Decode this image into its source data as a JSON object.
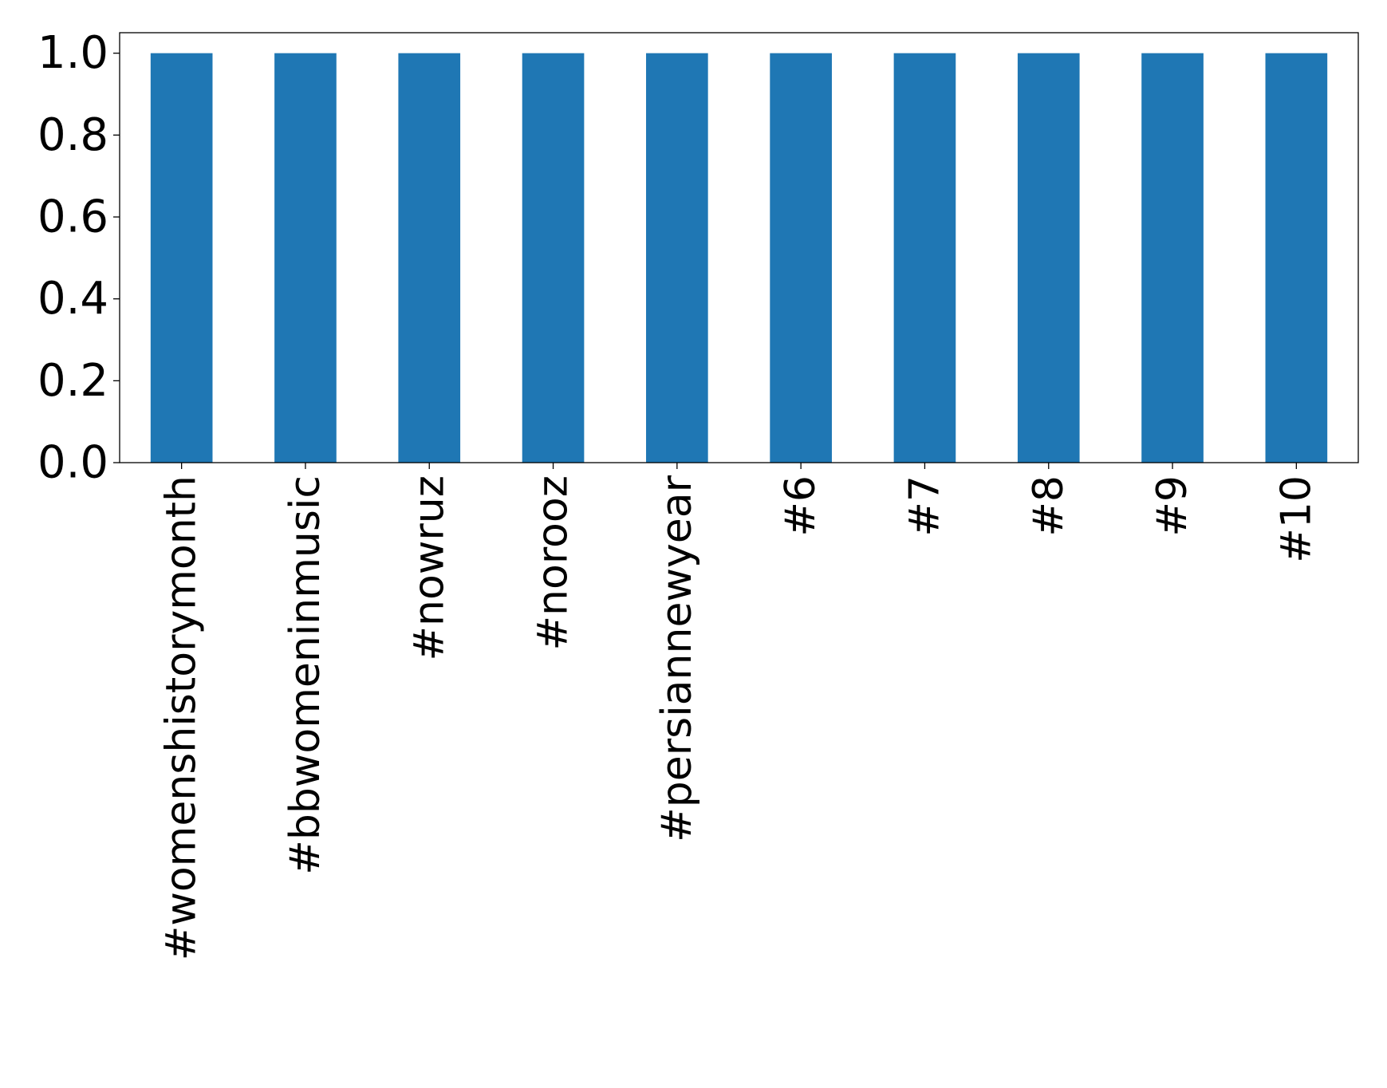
{
  "chart_data": {
    "type": "bar",
    "title": "",
    "xlabel": "",
    "ylabel": "",
    "categories": [
      "#womenshistorymonth",
      "#bbwomeninmusic",
      "#nowruz",
      "#norooz",
      "#persiannewyear",
      "#6",
      "#7",
      "#8",
      "#9",
      "#10"
    ],
    "values": [
      1.0,
      1.0,
      1.0,
      1.0,
      1.0,
      1.0,
      1.0,
      1.0,
      1.0,
      1.0
    ],
    "ylim": [
      0,
      1.05
    ],
    "yticks": [
      "0.0",
      "0.2",
      "0.4",
      "0.6",
      "0.8",
      "1.0"
    ],
    "bar_color": "#1f77b4",
    "grid": false,
    "legend": "none"
  }
}
